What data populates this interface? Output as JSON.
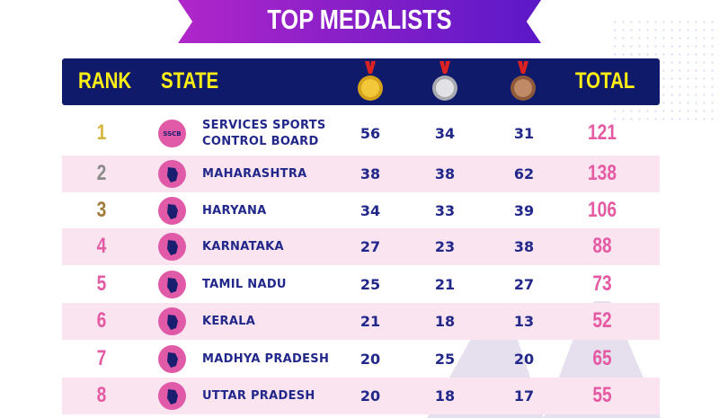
{
  "title": "TOP MEDALISTS",
  "header": {
    "rank": "RANK",
    "state": "STATE",
    "gold_icon": "gold-medal-icon",
    "silver_icon": "silver-medal-icon",
    "bronze_icon": "bronze-medal-icon",
    "total": "TOTAL"
  },
  "colors": {
    "header_bg": "#0f1a6b",
    "header_text": "#ffef14",
    "total_text": "#e45aa3",
    "row_alt": "#f9e4f0",
    "rank1": "#d4b43a",
    "rank2": "#8a8a8a",
    "rank3": "#a07a3a",
    "rank_other": "#e45aa3"
  },
  "rows": [
    {
      "rank": "1",
      "icon": "SSCB",
      "state": "SERVICES SPORTS CONTROL BOARD",
      "gold": "56",
      "silver": "34",
      "bronze": "31",
      "total": "121"
    },
    {
      "rank": "2",
      "icon": "maharashtra-map-icon",
      "state": "MAHARASHTRA",
      "gold": "38",
      "silver": "38",
      "bronze": "62",
      "total": "138"
    },
    {
      "rank": "3",
      "icon": "haryana-map-icon",
      "state": "HARYANA",
      "gold": "34",
      "silver": "33",
      "bronze": "39",
      "total": "106"
    },
    {
      "rank": "4",
      "icon": "karnataka-map-icon",
      "state": "KARNATAKA",
      "gold": "27",
      "silver": "23",
      "bronze": "38",
      "total": "88"
    },
    {
      "rank": "5",
      "icon": "tamil-nadu-map-icon",
      "state": "TAMIL NADU",
      "gold": "25",
      "silver": "21",
      "bronze": "27",
      "total": "73"
    },
    {
      "rank": "6",
      "icon": "kerala-map-icon",
      "state": "KERALA",
      "gold": "21",
      "silver": "18",
      "bronze": "13",
      "total": "52"
    },
    {
      "rank": "7",
      "icon": "madhya-pradesh-map-icon",
      "state": "MADHYA PRADESH",
      "gold": "20",
      "silver": "25",
      "bronze": "20",
      "total": "65"
    },
    {
      "rank": "8",
      "icon": "uttar-pradesh-map-icon",
      "state": "UTTAR PRADESH",
      "gold": "20",
      "silver": "18",
      "bronze": "17",
      "total": "55"
    }
  ]
}
